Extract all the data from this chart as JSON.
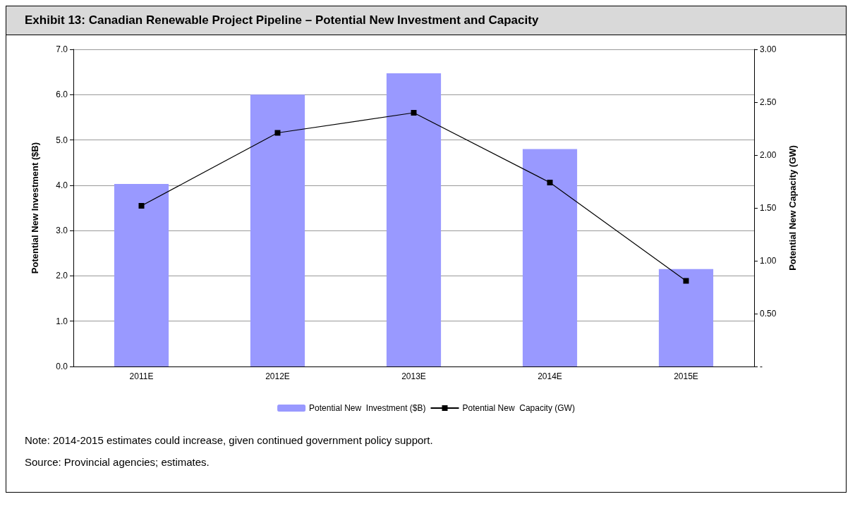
{
  "chart_data": {
    "type": "bar",
    "title": "Exhibit 13: Canadian Renewable Project Pipeline – Potential New Investment and Capacity",
    "categories": [
      "2011E",
      "2012E",
      "2013E",
      "2014E",
      "2015E"
    ],
    "series": [
      {
        "name": "Potential New  Investment ($B)",
        "color": "#9999ff",
        "values": [
          4.03,
          6.0,
          6.47,
          4.8,
          2.15
        ]
      },
      {
        "name": "Potential New  Capacity (GW)",
        "type": "line",
        "axis": "y2",
        "color": "#000000",
        "marker": "square",
        "line_style": "solid",
        "values": [
          1.52,
          2.21,
          2.4,
          1.74,
          0.81
        ]
      }
    ],
    "ylabel": "Potential New Investment ($B)",
    "y2label": "Potential New Capacity (GW)",
    "ylim": [
      0,
      7
    ],
    "yticks": [
      {
        "value": 0,
        "label": "0.0"
      },
      {
        "value": 1,
        "label": "1.0"
      },
      {
        "value": 2,
        "label": "2.0"
      },
      {
        "value": 3,
        "label": "3.0"
      },
      {
        "value": 4,
        "label": "4.0"
      },
      {
        "value": 5,
        "label": "5.0"
      },
      {
        "value": 6,
        "label": "6.0"
      },
      {
        "value": 7,
        "label": "7.0"
      }
    ],
    "y2lim": [
      0,
      3
    ],
    "y2ticks": [
      {
        "value": 0,
        "label": "-"
      },
      {
        "value": 0.5,
        "label": "0.50"
      },
      {
        "value": 1,
        "label": "1.00"
      },
      {
        "value": 1.5,
        "label": "1.50"
      },
      {
        "value": 2,
        "label": "2.00"
      },
      {
        "value": 2.5,
        "label": "2.50"
      },
      {
        "value": 3,
        "label": "3.00"
      }
    ],
    "grid": "y",
    "legend": "bottom",
    "annotations": [
      "Note: 2014-2015 estimates could increase, given continued government policy support.",
      "Source: Provincial agencies; estimates."
    ]
  }
}
